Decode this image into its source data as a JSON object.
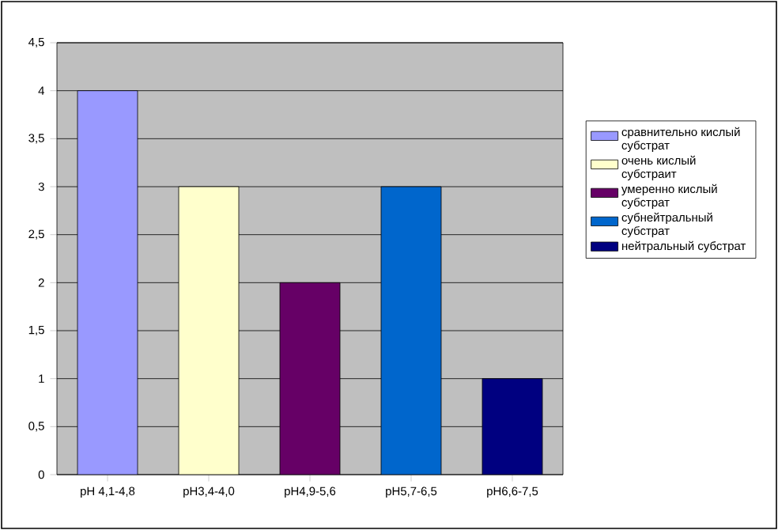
{
  "chart_data": {
    "type": "bar",
    "categories": [
      "pH 4,1-4,8",
      "pH3,4-4,0",
      "pH4,9-5,6",
      "pH5,7-6,5",
      "pH6,6-7,5"
    ],
    "series": [
      {
        "name": "сравнительно кислый субстрат",
        "color": "#9999ff",
        "values": [
          4,
          null,
          null,
          null,
          null
        ]
      },
      {
        "name": "очень кислый субстраит",
        "color": "#ffffcc",
        "values": [
          null,
          3,
          null,
          null,
          null
        ]
      },
      {
        "name": "умеренно кислый субстрат",
        "color": "#660066",
        "values": [
          null,
          null,
          2,
          null,
          null
        ]
      },
      {
        "name": "субнейтральный субстрат",
        "color": "#0066cc",
        "values": [
          null,
          null,
          null,
          3,
          null
        ]
      },
      {
        "name": "нейтральный субстрат",
        "color": "#000080",
        "values": [
          null,
          null,
          null,
          null,
          1
        ]
      }
    ],
    "ylim": [
      0,
      4.5
    ],
    "yticks": [
      0,
      {
        "value": 0.5,
        "label": "0,5"
      },
      1,
      {
        "value": 1.5,
        "label": "1,5"
      },
      2,
      {
        "value": 2.5,
        "label": "2,5"
      },
      3,
      {
        "value": 3.5,
        "label": "3,5"
      },
      4,
      {
        "value": 4.5,
        "label": "4,5"
      }
    ],
    "grid": "y",
    "legend": "right"
  }
}
